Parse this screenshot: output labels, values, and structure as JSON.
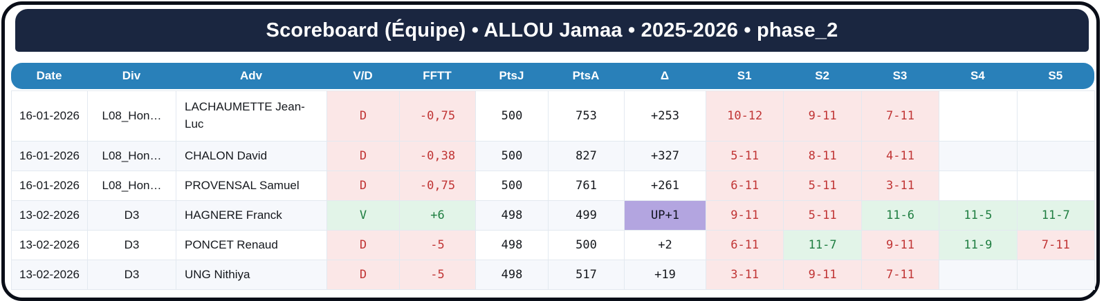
{
  "title": "Scoreboard (Équipe) • ALLOU Jamaa • 2025-2026 • phase_2",
  "colors": {
    "frame": "#0a0e18",
    "title_bar_bg": "#1a2640",
    "title_text": "#ffffff",
    "header_bg": "#2980b9",
    "header_text": "#ffffff",
    "row_alt_bg": "#f6f8fc",
    "loss_bg": "#fbe7e7",
    "loss_text": "#c03434",
    "win_bg": "#e2f4e8",
    "win_text": "#1e7d40",
    "promotion_bg": "#b3a5e0",
    "grid_border": "#e3e9f0"
  },
  "table": {
    "columns": [
      "Date",
      "Div",
      "Adv",
      "V/D",
      "FFTT",
      "PtsJ",
      "PtsA",
      "Δ",
      "S1",
      "S2",
      "S3",
      "S4",
      "S5"
    ],
    "rows": [
      {
        "date": "16-01-2026",
        "div": "L08_Hon…",
        "adv": "LACHAUMETTE Jean-Luc",
        "vd": "D",
        "fftt": "-0,75",
        "ptsj": "500",
        "ptsa": "753",
        "delta": "+253",
        "s1": "10-12",
        "s2": "9-11",
        "s3": "7-11",
        "s4": "",
        "s5": ""
      },
      {
        "date": "16-01-2026",
        "div": "L08_Hon…",
        "adv": "CHALON David",
        "vd": "D",
        "fftt": "-0,38",
        "ptsj": "500",
        "ptsa": "827",
        "delta": "+327",
        "s1": "5-11",
        "s2": "8-11",
        "s3": "4-11",
        "s4": "",
        "s5": ""
      },
      {
        "date": "16-01-2026",
        "div": "L08_Hon…",
        "adv": "PROVENSAL Samuel",
        "vd": "D",
        "fftt": "-0,75",
        "ptsj": "500",
        "ptsa": "761",
        "delta": "+261",
        "s1": "6-11",
        "s2": "5-11",
        "s3": "3-11",
        "s4": "",
        "s5": ""
      },
      {
        "date": "13-02-2026",
        "div": "D3",
        "adv": "HAGNERE Franck",
        "vd": "V",
        "fftt": "+6",
        "ptsj": "498",
        "ptsa": "499",
        "delta": "UP+1",
        "s1": "9-11",
        "s2": "5-11",
        "s3": "11-6",
        "s4": "11-5",
        "s5": "11-7"
      },
      {
        "date": "13-02-2026",
        "div": "D3",
        "adv": "PONCET Renaud",
        "vd": "D",
        "fftt": "-5",
        "ptsj": "498",
        "ptsa": "500",
        "delta": "+2",
        "s1": "6-11",
        "s2": "11-7",
        "s3": "9-11",
        "s4": "11-9",
        "s5": "7-11"
      },
      {
        "date": "13-02-2026",
        "div": "D3",
        "adv": "UNG Nithiya",
        "vd": "D",
        "fftt": "-5",
        "ptsj": "498",
        "ptsa": "517",
        "delta": "+19",
        "s1": "3-11",
        "s2": "9-11",
        "s3": "7-11",
        "s4": "",
        "s5": ""
      }
    ]
  }
}
